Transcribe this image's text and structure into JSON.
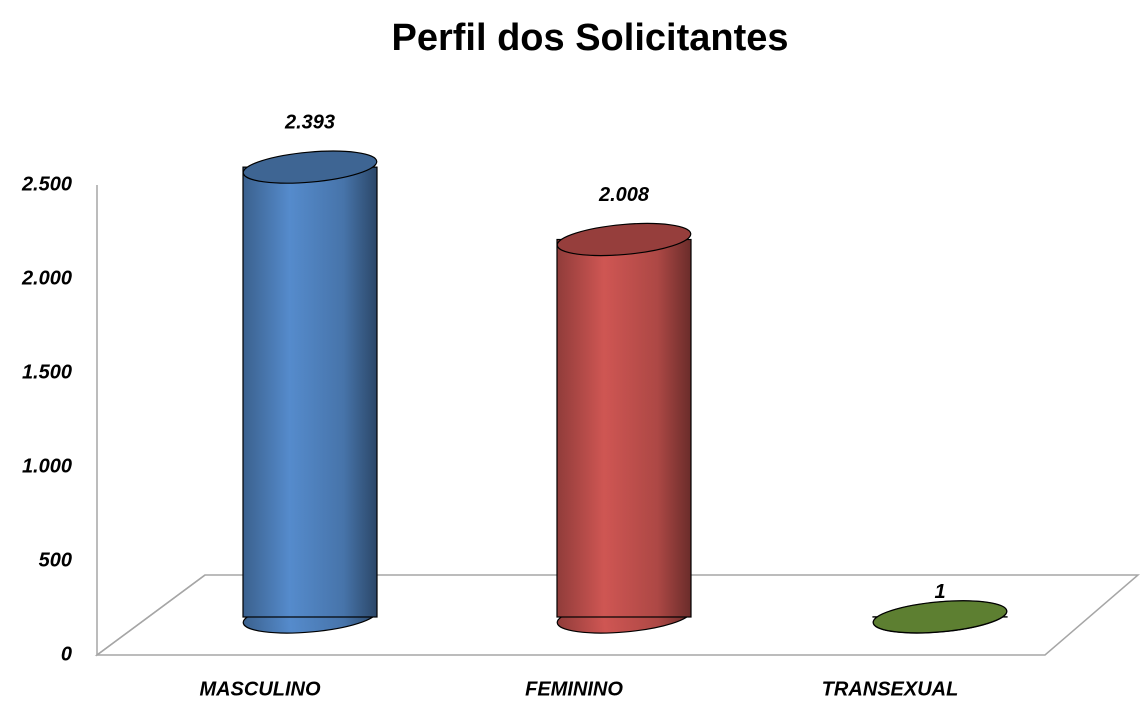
{
  "chart_data": {
    "type": "bar",
    "title": "Perfil dos Solicitantes",
    "categories": [
      "MASCULINO",
      "FEMININO",
      "TRANSEXUAL"
    ],
    "values": [
      2393,
      2008,
      1
    ],
    "value_labels": [
      "2.393",
      "2.008",
      "1"
    ],
    "colors": [
      "#4f81bd",
      "#c0504d",
      "#77a33f"
    ],
    "ylim": [
      0,
      2500
    ],
    "yticks": [
      0,
      500,
      {
        "value": 1000,
        "label": "1.000"
      },
      {
        "value": 1500,
        "label": "1.500"
      },
      {
        "value": 2000,
        "label": "2.000"
      },
      {
        "value": 2500,
        "label": "2.500"
      }
    ],
    "grid": false
  }
}
